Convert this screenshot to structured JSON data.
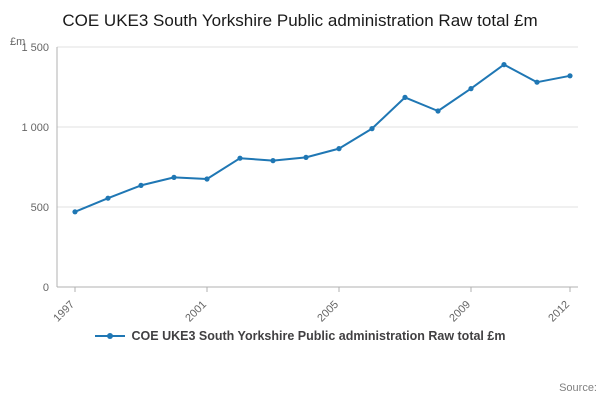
{
  "title": "COE UKE3 South Yorkshire Public administration Raw total £m",
  "y_unit_label": "£m",
  "source_label": "Source:",
  "legend": {
    "label": "COE UKE3 South Yorkshire Public administration Raw total £m"
  },
  "colors": {
    "line": "#1f77b4",
    "grid": "#e0e0e0",
    "axis": "#b0b0b0",
    "tick_text": "#666666",
    "title_text": "#1a1a1a",
    "source_text": "#808080"
  },
  "chart_data": {
    "type": "line",
    "title": "COE UKE3 South Yorkshire Public administration Raw total £m",
    "xlabel": "",
    "ylabel": "£m",
    "x": [
      1997,
      1998,
      1999,
      2000,
      2001,
      2002,
      2003,
      2004,
      2005,
      2006,
      2007,
      2008,
      2009,
      2010,
      2011,
      2012
    ],
    "series": [
      {
        "name": "COE UKE3 South Yorkshire Public administration Raw total £m",
        "values": [
          470,
          555,
          635,
          685,
          675,
          805,
          790,
          810,
          865,
          990,
          1185,
          1100,
          1240,
          1390,
          1280,
          1320
        ]
      }
    ],
    "ylim": [
      0,
      1500
    ],
    "yticks": [
      0,
      500,
      1000,
      1500
    ],
    "ytick_labels": [
      "0",
      "500",
      "1 000",
      "1 500"
    ],
    "xticks": [
      1997,
      2001,
      2005,
      2009,
      2012
    ],
    "grid": true,
    "markers": true,
    "legend_position": "bottom"
  }
}
